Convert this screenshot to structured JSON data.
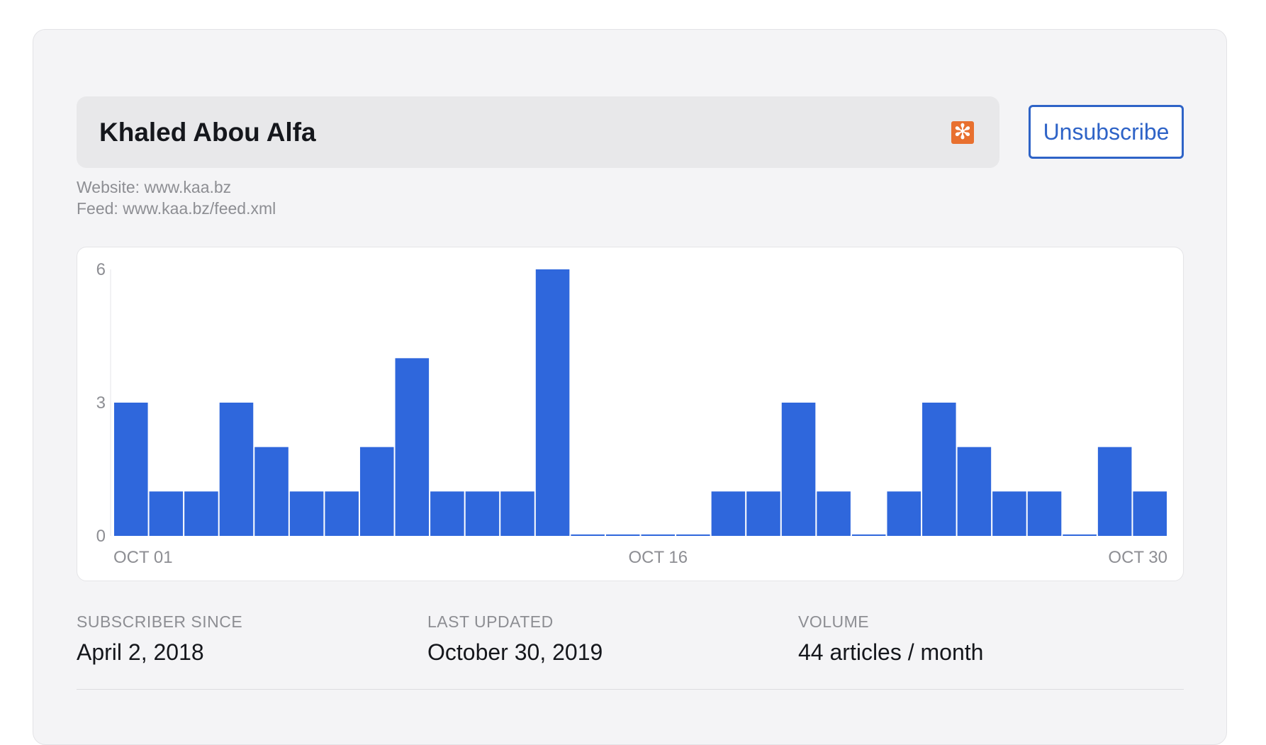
{
  "feed": {
    "title": "Khaled Abou Alfa",
    "rss_icon": "rss-icon",
    "website_line": "Website: www.kaa.bz",
    "feed_line": "Feed: www.kaa.bz/feed.xml"
  },
  "actions": {
    "unsubscribe_label": "Unsubscribe"
  },
  "stats": {
    "subscriber_since_label": "SUBSCRIBER SINCE",
    "subscriber_since_value": "April 2, 2018",
    "last_updated_label": "LAST UPDATED",
    "last_updated_value": "October 30, 2019",
    "volume_label": "VOLUME",
    "volume_value": "44 articles / month"
  },
  "colors": {
    "accent": "#2e63c7",
    "bar": "#2f67dc",
    "rss": "#e8702f"
  },
  "chart_data": {
    "type": "bar",
    "categories": [
      "OCT 01",
      "OCT 02",
      "OCT 03",
      "OCT 04",
      "OCT 05",
      "OCT 06",
      "OCT 07",
      "OCT 08",
      "OCT 09",
      "OCT 10",
      "OCT 11",
      "OCT 12",
      "OCT 13",
      "OCT 14",
      "OCT 15",
      "OCT 16",
      "OCT 17",
      "OCT 18",
      "OCT 19",
      "OCT 20",
      "OCT 21",
      "OCT 22",
      "OCT 23",
      "OCT 24",
      "OCT 25",
      "OCT 26",
      "OCT 27",
      "OCT 28",
      "OCT 29",
      "OCT 30"
    ],
    "values": [
      3,
      1,
      1,
      3,
      2,
      1,
      1,
      2,
      4,
      1,
      1,
      1,
      6,
      0,
      0,
      0,
      0,
      1,
      1,
      3,
      1,
      0,
      1,
      3,
      2,
      1,
      1,
      0,
      2,
      1
    ],
    "x_tick_labels": [
      "OCT 01",
      "OCT 16",
      "OCT 30"
    ],
    "y_ticks": [
      0,
      3,
      6
    ],
    "ylim": [
      0,
      6
    ],
    "title": "",
    "xlabel": "",
    "ylabel": "",
    "grid": false,
    "legend": "none"
  }
}
